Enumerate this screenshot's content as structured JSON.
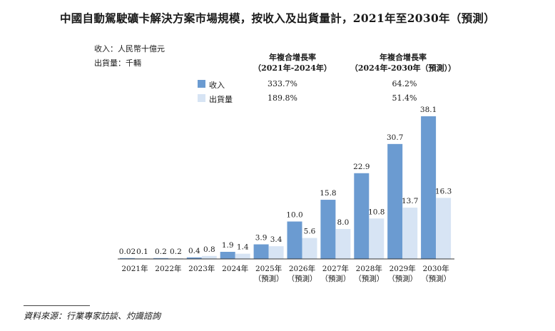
{
  "title": "中國自動駕駛礦卡解決方案市場規模，按收入及出貨量計，2021年至2030年（預測）",
  "unit_revenue": "收入：人民幣十億元",
  "unit_shipment": "出貨量：千輛",
  "cagr": {
    "header1_line1": "年複合增長率",
    "header1_line2": "（2021年-2024年）",
    "header2_line1": "年複合增長率",
    "header2_line2": "（2024年-2030年（預測））",
    "revenue_1": "333.7%",
    "revenue_2": "64.2%",
    "shipment_1": "189.8%",
    "shipment_2": "51.4%"
  },
  "source": "資料來源：行業專家訪談、灼識諮詢",
  "colors": {
    "revenue": "#6b9bd1",
    "shipment": "#d7e4f4",
    "axis": "#333333"
  },
  "chart_data": {
    "type": "bar",
    "title": "中國自動駕駛礦卡解決方案市場規模，按收入及出貨量計，2021年至2030年（預測）",
    "categories": [
      "2021年",
      "2022年",
      "2023年",
      "2024年",
      "2025年",
      "2026年",
      "2027年",
      "2028年",
      "2029年",
      "2030年"
    ],
    "category_sublabels": [
      "",
      "",
      "",
      "",
      "（預測）",
      "（預測）",
      "（預測）",
      "（預測）",
      "（預測）",
      "（預測）"
    ],
    "series": [
      {
        "name": "收入",
        "values": [
          0.02,
          0.2,
          0.4,
          1.9,
          3.9,
          10.0,
          15.8,
          22.9,
          30.7,
          38.1
        ],
        "labels": [
          "0.02",
          "0.2",
          "0.4",
          "1.9",
          "3.9",
          "10.0",
          "15.8",
          "22.9",
          "30.7",
          "38.1"
        ]
      },
      {
        "name": "出貨量",
        "values": [
          0.1,
          0.2,
          0.8,
          1.4,
          3.4,
          5.6,
          8.0,
          10.8,
          13.7,
          16.3
        ],
        "labels": [
          "0.1",
          "0.2",
          "0.8",
          "1.4",
          "3.4",
          "5.6",
          "8.0",
          "10.8",
          "13.7",
          "16.3"
        ]
      }
    ],
    "ylim": [
      0,
      38.1
    ],
    "legend": "top-left",
    "grid": false
  }
}
